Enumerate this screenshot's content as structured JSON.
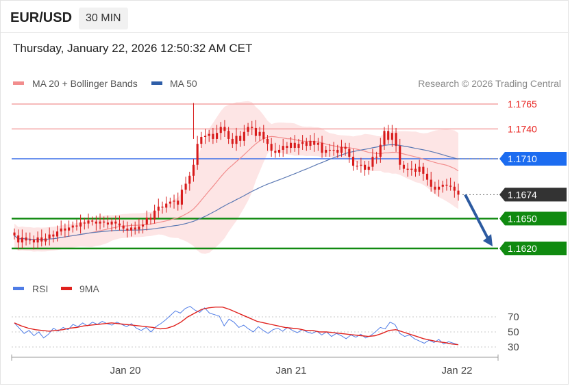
{
  "header": {
    "pair": "EUR/USD",
    "timeframe": "30 MIN",
    "datetime": "Thursday, January 22, 2026 12:50:32 AM CET"
  },
  "legend": {
    "ma20": "MA 20 + Bollinger Bands",
    "ma50": "MA 50",
    "credit": "Research © 2026 Trading Central"
  },
  "rsi_legend": {
    "rsi": "RSI",
    "ma9": "9MA"
  },
  "colors": {
    "resistance": "#f4a3a3",
    "resistance_text": "#e8211d",
    "pivot": "#3a6fe8",
    "pivot_tag": "#1c6cf0",
    "support": "#108a10",
    "current_tag": "#333333",
    "bollinger_fill": "#fde1e1",
    "ma20": "#f28d8d",
    "ma50": "#5a78b3",
    "candle": "#d81b1b",
    "arrow": "#2c5aa0",
    "rsi": "#4f7ce6",
    "rsi_ma": "#e0211d"
  },
  "chart_data": [
    {
      "type": "candlestick",
      "title": "EUR/USD",
      "timeframe": "30 MIN",
      "x_ticks": [
        "Jan 20",
        "Jan 21",
        "Jan 22"
      ],
      "ylim": [
        1.1605,
        1.1775
      ],
      "levels": [
        {
          "label": "1.1765",
          "value": 1.1765,
          "kind": "resistance"
        },
        {
          "label": "1.1740",
          "value": 1.174,
          "kind": "resistance"
        },
        {
          "label": "1.1710",
          "value": 1.171,
          "kind": "pivot"
        },
        {
          "label": "1.1674",
          "value": 1.1674,
          "kind": "current"
        },
        {
          "label": "1.1650",
          "value": 1.165,
          "kind": "support"
        },
        {
          "label": "1.1620",
          "value": 1.162,
          "kind": "support"
        }
      ],
      "closes": [
        1.1633,
        1.1626,
        1.1631,
        1.1628,
        1.1629,
        1.1626,
        1.1631,
        1.1627,
        1.163,
        1.1634,
        1.1632,
        1.1637,
        1.164,
        1.1638,
        1.1641,
        1.1643,
        1.1642,
        1.1646,
        1.1645,
        1.1648,
        1.1647,
        1.1645,
        1.1647,
        1.1646,
        1.1644,
        1.1647,
        1.1645,
        1.1643,
        1.164,
        1.1638,
        1.1641,
        1.1639,
        1.1642,
        1.1644,
        1.1651,
        1.1649,
        1.1658,
        1.1662,
        1.1661,
        1.1665,
        1.1667,
        1.1668,
        1.1664,
        1.1679,
        1.1685,
        1.1693,
        1.1704,
        1.1725,
        1.1732,
        1.1733,
        1.1735,
        1.173,
        1.1736,
        1.1742,
        1.1738,
        1.173,
        1.1725,
        1.1733,
        1.1728,
        1.1737,
        1.1742,
        1.1741,
        1.1733,
        1.1737,
        1.173,
        1.1725,
        1.1718,
        1.1716,
        1.1719,
        1.1723,
        1.1721,
        1.1726,
        1.1721,
        1.1725,
        1.1727,
        1.1723,
        1.1728,
        1.1724,
        1.1726,
        1.1716,
        1.1719,
        1.1719,
        1.1719,
        1.1716,
        1.1722,
        1.172,
        1.1712,
        1.1703,
        1.1703,
        1.1704,
        1.1699,
        1.1702,
        1.1712,
        1.1712,
        1.1724,
        1.1738,
        1.1729,
        1.1736,
        1.1723,
        1.1704,
        1.17,
        1.1699,
        1.17,
        1.1697,
        1.1702,
        1.1695,
        1.1689,
        1.1682,
        1.1679,
        1.1682,
        1.1684,
        1.1683,
        1.1682,
        1.1678,
        1.1674
      ],
      "series": [
        {
          "name": "MA 20 + Bollinger Bands",
          "type": "line"
        },
        {
          "name": "MA 50",
          "type": "line"
        }
      ],
      "forecast_arrow": {
        "from": 1.1674,
        "to": 1.162
      }
    },
    {
      "type": "line",
      "title": "RSI",
      "yticks": [
        30,
        50,
        70
      ],
      "ylim": [
        25,
        90
      ],
      "series": [
        {
          "name": "RSI",
          "values": [
            62,
            55,
            48,
            52,
            45,
            50,
            42,
            47,
            55,
            51,
            56,
            53,
            60,
            57,
            62,
            58,
            63,
            60,
            64,
            61,
            59,
            63,
            60,
            57,
            61,
            55,
            52,
            56,
            50,
            57,
            61,
            66,
            72,
            78,
            75,
            81,
            84,
            79,
            76,
            82,
            75,
            73,
            71,
            58,
            67,
            63,
            56,
            59,
            54,
            50,
            57,
            52,
            48,
            53,
            55,
            51,
            56,
            52,
            49,
            53,
            50,
            48,
            51,
            46,
            50,
            44,
            48,
            45,
            41,
            46,
            43,
            47,
            42,
            45,
            50,
            56,
            54,
            63,
            60,
            48,
            44,
            46,
            41,
            38,
            35,
            39,
            36,
            40,
            34,
            37,
            35,
            33
          ],
          "x_end_fraction": 1
        },
        {
          "name": "9MA",
          "values": [
            62,
            58,
            55,
            53,
            52,
            51,
            52,
            53,
            55,
            56,
            58,
            59,
            60,
            61,
            62,
            61,
            60,
            59,
            58,
            57,
            56,
            54,
            55,
            58,
            63,
            70,
            75,
            80,
            82,
            83,
            83,
            80,
            76,
            72,
            68,
            64,
            62,
            60,
            58,
            56,
            55,
            54,
            52,
            52,
            50,
            50,
            49,
            48,
            47,
            46,
            45,
            44,
            45,
            48,
            52,
            53,
            50,
            47,
            44,
            41,
            39,
            37,
            36,
            34,
            33
          ]
        }
      ]
    }
  ]
}
